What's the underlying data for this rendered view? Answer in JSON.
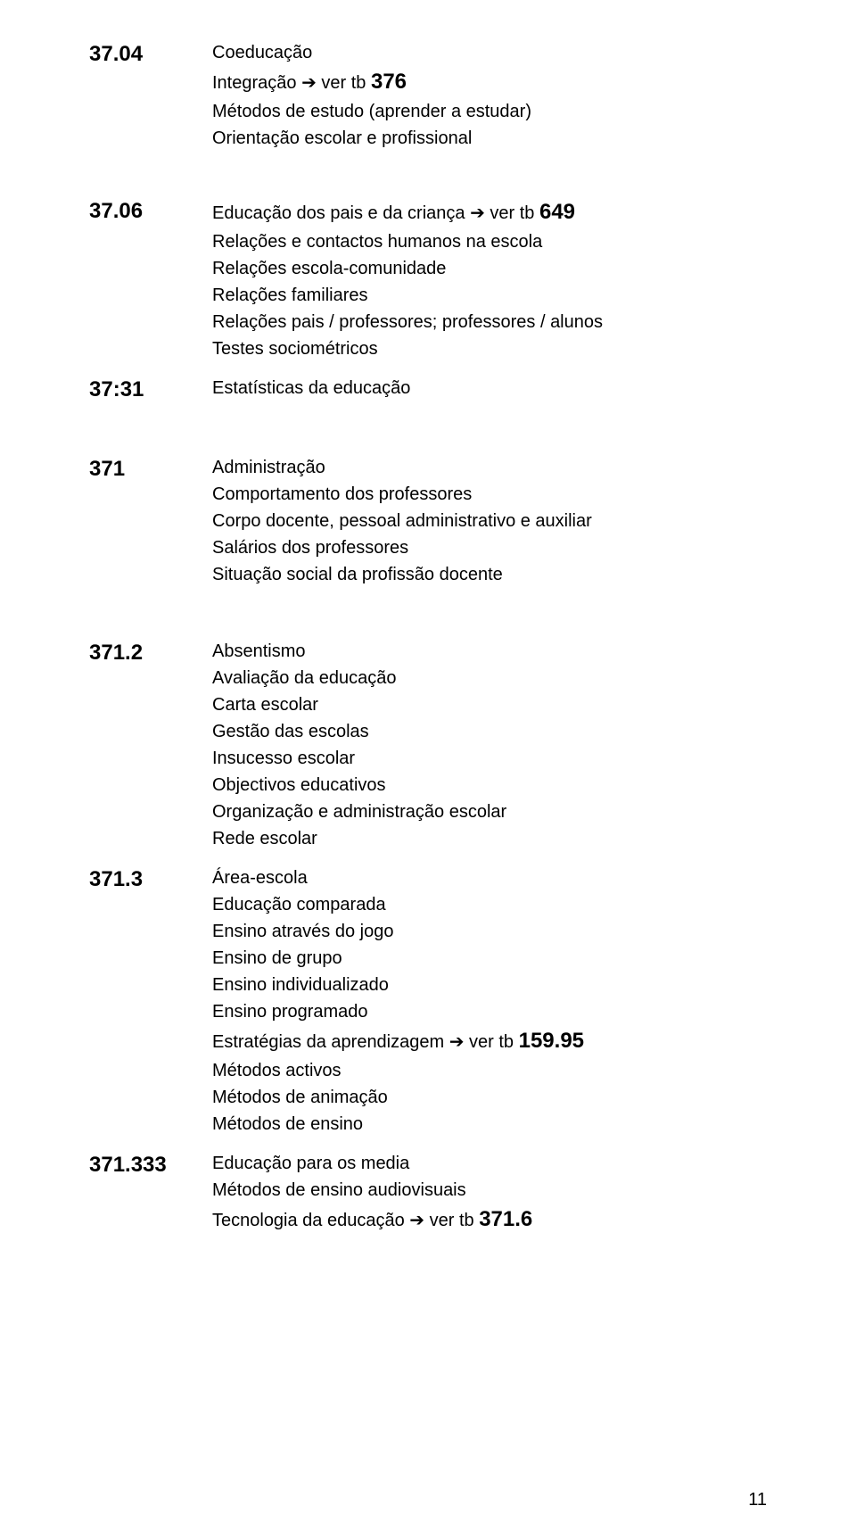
{
  "sections": [
    {
      "code": "37.04",
      "lines": [
        {
          "text": "Coeducação"
        },
        {
          "prefix": "Integração",
          "arrow": " ➔ ",
          "mid": "ver tb ",
          "bold": "376"
        },
        {
          "text": "Métodos de estudo (aprender a estudar)"
        },
        {
          "text": "Orientação escolar e profissional"
        }
      ]
    },
    {
      "code": "37.06",
      "lines": [
        {
          "prefix": "Educação dos pais e da criança",
          "arrow": " ➔ ",
          "mid": "ver tb ",
          "bold": "649"
        },
        {
          "text": "Relações e contactos humanos na escola"
        },
        {
          "text": "Relações escola-comunidade"
        },
        {
          "text": "Relações familiares"
        },
        {
          "text": "Relações pais / professores; professores / alunos"
        },
        {
          "text": "Testes sociométricos"
        }
      ]
    },
    {
      "code": "37:31",
      "lines": [
        {
          "text": "Estatísticas da educação"
        }
      ]
    },
    {
      "code": "371",
      "lines": [
        {
          "text": "Administração"
        },
        {
          "text": "Comportamento dos professores"
        },
        {
          "text": "Corpo docente, pessoal administrativo e auxiliar"
        },
        {
          "text": "Salários dos professores"
        },
        {
          "text": "Situação social da profissão docente"
        }
      ]
    },
    {
      "code": "371.2",
      "lines": [
        {
          "text": "Absentismo"
        },
        {
          "text": "Avaliação da educação"
        },
        {
          "text": "Carta escolar"
        },
        {
          "text": "Gestão das escolas"
        },
        {
          "text": "Insucesso escolar"
        },
        {
          "text": "Objectivos educativos"
        },
        {
          "text": "Organização e administração escolar"
        },
        {
          "text": "Rede escolar"
        }
      ]
    },
    {
      "code": "371.3",
      "lines": [
        {
          "text": "Área-escola"
        },
        {
          "text": "Educação comparada"
        },
        {
          "text": "Ensino através do jogo"
        },
        {
          "text": "Ensino de grupo"
        },
        {
          "text": "Ensino individualizado"
        },
        {
          "text": "Ensino programado"
        },
        {
          "prefix": "Estratégias da aprendizagem",
          "arrow": " ➔ ",
          "mid": "ver tb ",
          "bold": "159.95"
        },
        {
          "text": "Métodos activos"
        },
        {
          "text": "Métodos de animação"
        },
        {
          "text": "Métodos de ensino"
        }
      ]
    },
    {
      "code": "371.333",
      "lines": [
        {
          "text": "Educação para os media"
        },
        {
          "text": "Métodos de ensino audiovisuais"
        },
        {
          "prefix": "Tecnologia da educação",
          "arrow": " ➔ ",
          "mid": "ver tb ",
          "bold": "371.6"
        }
      ]
    }
  ],
  "gaps": [
    50,
    14,
    56,
    56,
    14,
    14,
    0
  ],
  "page_number": "11",
  "colors": {
    "text": "#000000",
    "background": "#ffffff"
  },
  "typography": {
    "code_fontsize": 24,
    "code_weight": "bold",
    "body_fontsize": 20,
    "boldnum_fontsize": 24,
    "font_family": "Arial"
  }
}
